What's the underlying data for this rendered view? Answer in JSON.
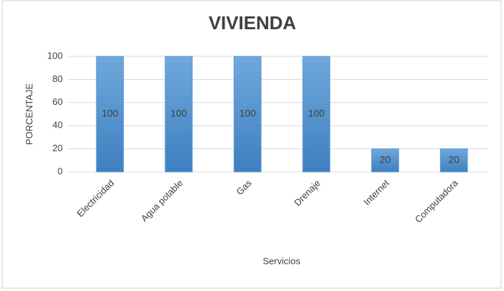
{
  "chart_data": {
    "type": "bar",
    "title": "VIVIENDA",
    "categories": [
      "Electricidad",
      "Agua potable",
      "Gas",
      "Drenaje",
      "Internet",
      "Computadora"
    ],
    "values": [
      100,
      100,
      100,
      100,
      20,
      20
    ],
    "color": "#5b9bd5",
    "x_label": "Servicios",
    "y_label": "PORCENTAJE",
    "ylim": [
      0,
      100
    ],
    "yticks": [
      0,
      20,
      40,
      60,
      80,
      100
    ],
    "grid": true,
    "data_labels": true
  }
}
